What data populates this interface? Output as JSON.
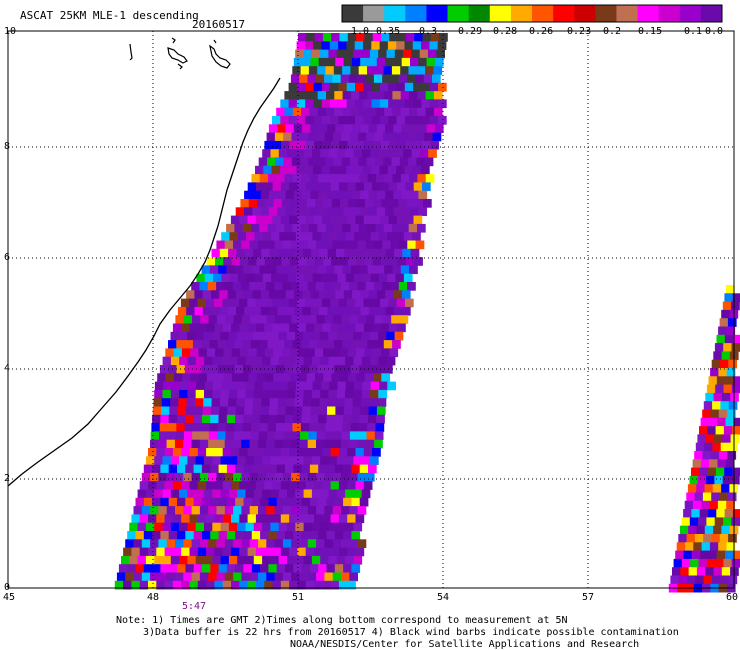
{
  "header": {
    "title": "ASCAT 25KM MLE-1 descending",
    "date": "20160517"
  },
  "legend": {
    "labels": [
      "-1.0",
      "-0.35",
      "-0.3",
      "-0.29",
      "-0.28",
      "-0.26",
      "-0.23",
      "-0.2",
      "-0.15",
      "-0.1",
      "0.0"
    ],
    "colors": [
      "#3a3a3a",
      "#9a9a9a",
      "#00ccff",
      "#0080ff",
      "#0000ff",
      "#00cc00",
      "#008800",
      "#ffff00",
      "#ffaa00",
      "#ff5500",
      "#ff0000",
      "#cc0000",
      "#7a3a1a",
      "#c07050",
      "#ff00ff",
      "#cc00cc",
      "#9900cc",
      "#6a0aaa"
    ]
  },
  "axes": {
    "y_ticks": [
      "0",
      "2",
      "4",
      "6",
      "8",
      "10"
    ],
    "x_ticks": [
      "45",
      "48",
      "51",
      "54",
      "57",
      "60"
    ],
    "xlim": [
      45,
      60
    ],
    "ylim": [
      0,
      10
    ]
  },
  "time_label": "5:47",
  "notes": {
    "line1": "Note: 1) Times are GMT 2)Times along bottom correspond to measurement at 5N",
    "line2": "3)Data buffer is 22 hrs from 20160517 4) Black wind barbs indicate possible contamination",
    "line3": "NOAA/NESDIS/Center for Satellite Applications and Research"
  }
}
